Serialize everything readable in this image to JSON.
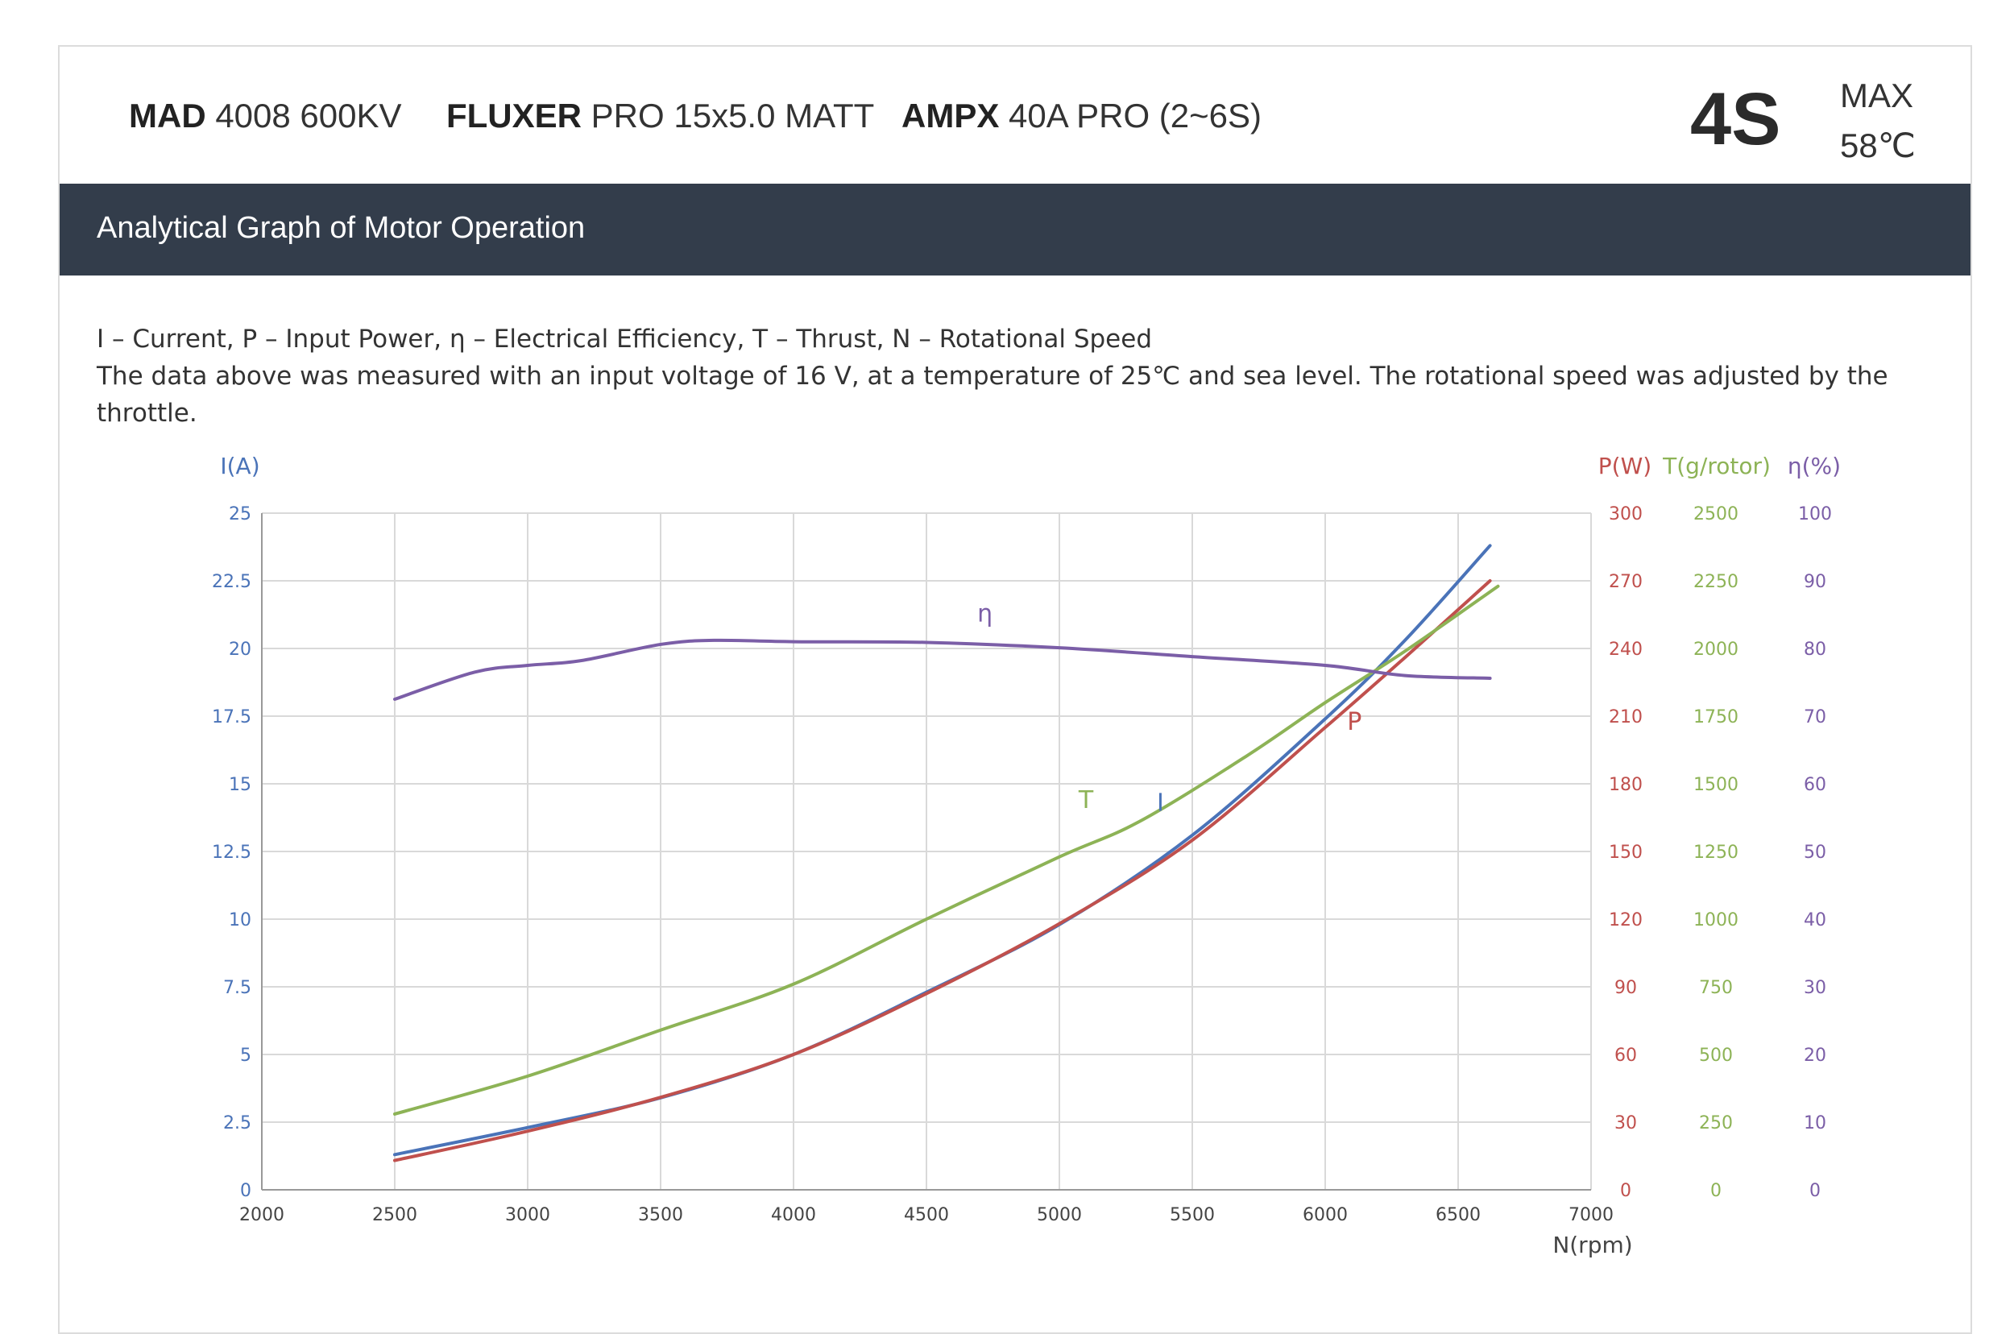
{
  "header": {
    "motor": {
      "brand": "MAD",
      "model": "4008 600KV"
    },
    "propeller": {
      "brand": "FLUXER",
      "model": "PRO 15x5.0 MATT"
    },
    "esc": {
      "brand": "AMPX",
      "model": "40A PRO (2~6S)"
    },
    "cells": "4S",
    "max_label": "MAX",
    "max_temp": "58℃"
  },
  "section_title": "Analytical Graph of Motor Operation",
  "notes": {
    "line1": "I – Current, P – Input Power, η – Electrical Efficiency, T – Thrust,   N – Rotational Speed",
    "line2": "The data above was measured with an input voltage of 16 V, at a temperature of 25℃ and sea level. The rotational speed was adjusted by the throttle."
  },
  "colors": {
    "current": "#4a73b8",
    "power": "#c0504d",
    "thrust": "#8db356",
    "efficiency": "#7b5ea7",
    "grid": "#d9d9d9",
    "band": "#333d4b"
  },
  "chart_data": {
    "type": "line",
    "x_label": "N(rpm)",
    "x_range": [
      2000,
      7000
    ],
    "x_ticks": [
      "2000",
      "2500",
      "3000",
      "3500",
      "4000",
      "4500",
      "5000",
      "5500",
      "6000",
      "6500",
      "7000"
    ],
    "grid": true,
    "axes": {
      "current": {
        "label": "I(A)",
        "range": [
          0,
          25
        ],
        "ticks": [
          "0",
          "2.5",
          "5",
          "7.5",
          "10",
          "12.5",
          "15",
          "17.5",
          "20",
          "22.5",
          "25"
        ]
      },
      "power": {
        "label": "P(W)",
        "range": [
          0,
          300
        ],
        "ticks": [
          "0",
          "30",
          "60",
          "90",
          "120",
          "150",
          "180",
          "210",
          "240",
          "270",
          "300"
        ]
      },
      "thrust": {
        "label": "T(g/rotor)",
        "range": [
          0,
          2500
        ],
        "ticks": [
          "0",
          "250",
          "500",
          "750",
          "1000",
          "1250",
          "1500",
          "1750",
          "2000",
          "2250",
          "2500"
        ]
      },
      "efficiency": {
        "label": "η(%)",
        "range": [
          0,
          100
        ],
        "ticks": [
          "0",
          "10",
          "20",
          "30",
          "40",
          "50",
          "60",
          "70",
          "80",
          "90",
          "100"
        ]
      }
    },
    "series": [
      {
        "name": "I",
        "axis": "current",
        "x": [
          2500,
          3000,
          3500,
          4000,
          4500,
          5000,
          5500,
          6000,
          6300,
          6620
        ],
        "values": [
          1.3,
          2.3,
          3.4,
          5.0,
          7.3,
          9.8,
          13.1,
          17.4,
          20.3,
          23.8
        ]
      },
      {
        "name": "P",
        "axis": "power",
        "x": [
          2500,
          3000,
          3500,
          4000,
          4500,
          5000,
          5500,
          6000,
          6300,
          6620
        ],
        "values": [
          13,
          26,
          41,
          60,
          87,
          118,
          155,
          205,
          236,
          270
        ]
      },
      {
        "name": "T",
        "axis": "thrust",
        "x": [
          2500,
          3000,
          3500,
          4000,
          4500,
          5000,
          5300,
          5700,
          6000,
          6300,
          6650
        ],
        "values": [
          280,
          420,
          590,
          760,
          1000,
          1230,
          1360,
          1600,
          1800,
          1990,
          2230
        ]
      },
      {
        "name": "η",
        "axis": "efficiency",
        "x": [
          2500,
          2800,
          3000,
          3200,
          3500,
          3700,
          4000,
          4500,
          5000,
          5500,
          6000,
          6300,
          6620
        ],
        "values": [
          72.5,
          76.5,
          77.5,
          78.2,
          80.6,
          81.2,
          81.0,
          80.9,
          80.1,
          78.8,
          77.5,
          76.0,
          75.6
        ]
      }
    ],
    "curve_labels": [
      {
        "text": "η",
        "series": "η",
        "x": 4720,
        "axis": "efficiency",
        "y": 84
      },
      {
        "text": "T",
        "series": "T",
        "x": 5100,
        "axis": "thrust",
        "y": 1410
      },
      {
        "text": "I",
        "series": "I",
        "x": 5380,
        "axis": "current",
        "y": 14.0
      },
      {
        "text": "P",
        "series": "P",
        "x": 6110,
        "axis": "power",
        "y": 204
      }
    ]
  }
}
